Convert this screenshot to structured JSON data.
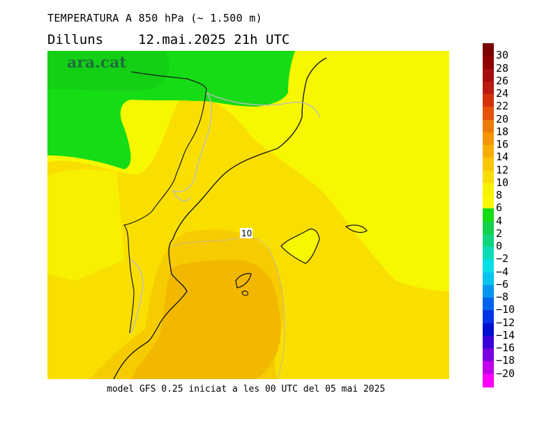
{
  "header": {
    "title": "TEMPERATURA A 850 hPa (~ 1.500 m)",
    "day": "Dilluns",
    "date_time": "12.mai.2025 21h UTC"
  },
  "logo": {
    "text": "ara.cat"
  },
  "map": {
    "contour_label": "10",
    "colors": {
      "green": "#16dc16",
      "yellow": "#f7f700",
      "yellow_orange": "#f9df00",
      "orange_light": "#f6cc00",
      "orange": "#f2b800",
      "border_dark": "#1a1a1a",
      "border_grey": "#bdbdbd",
      "contour": "#c9b88a"
    }
  },
  "footer": {
    "text": "model GFS 0.25 iniciat a les 00 UTC del 05 mai 2025"
  },
  "colorbar": {
    "labels": [
      "30",
      "28",
      "26",
      "24",
      "22",
      "20",
      "18",
      "16",
      "14",
      "12",
      "10",
      "8",
      "6",
      "4",
      "2",
      "0",
      "-2",
      "-4",
      "-6",
      "-8",
      "-10",
      "-12",
      "-14",
      "-16",
      "-18",
      "-20"
    ],
    "colors": [
      "#7a0000",
      "#8f0000",
      "#a50c0c",
      "#bb1a0e",
      "#d3310c",
      "#e5520a",
      "#ee7a06",
      "#f49400",
      "#f7ad00",
      "#f9c600",
      "#f9dd00",
      "#f7f300",
      "#f7f700",
      "#16dc16",
      "#12d24a",
      "#0fd67e",
      "#0bdcb6",
      "#00e0e6",
      "#00c4f0",
      "#0096f0",
      "#0064f0",
      "#0034e6",
      "#0010d0",
      "#3a00d8",
      "#7a00e0",
      "#c000e8",
      "#ff00ff"
    ]
  }
}
